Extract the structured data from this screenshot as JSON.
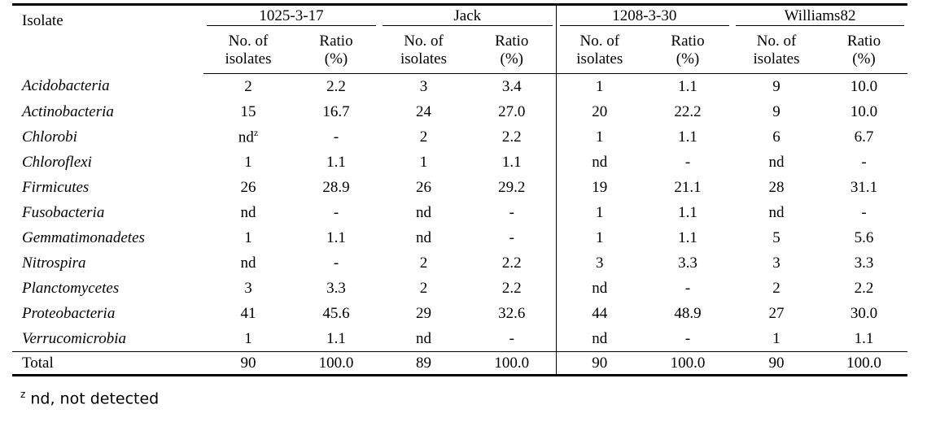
{
  "table": {
    "corner": "Isolate",
    "groups": [
      "1025-3-17",
      "Jack",
      "1208-3-30",
      "Williams82"
    ],
    "subheaders": [
      [
        "No. of",
        "isolates"
      ],
      [
        "Ratio",
        "(%)"
      ],
      [
        "No. of",
        "isolates"
      ],
      [
        "Ratio",
        "(%)"
      ],
      [
        "No. of",
        "isolates"
      ],
      [
        "Ratio",
        "(%)"
      ],
      [
        "No. of",
        "isolates"
      ],
      [
        "Ratio",
        "(%)"
      ]
    ],
    "rows": [
      {
        "name": "Acidobacteria",
        "cells": [
          "2",
          "2.2",
          "3",
          "3.4",
          "1",
          "1.1",
          "9",
          "10.0"
        ]
      },
      {
        "name": "Actinobacteria",
        "cells": [
          "15",
          "16.7",
          "24",
          "27.0",
          "20",
          "22.2",
          "9",
          "10.0"
        ]
      },
      {
        "name": "Chlorobi",
        "cells": [
          {
            "text": "nd",
            "sup": "z"
          },
          "-",
          "2",
          "2.2",
          "1",
          "1.1",
          "6",
          "6.7"
        ]
      },
      {
        "name": "Chloroflexi",
        "cells": [
          "1",
          "1.1",
          "1",
          "1.1",
          "nd",
          "-",
          "nd",
          "-"
        ]
      },
      {
        "name": "Firmicutes",
        "cells": [
          "26",
          "28.9",
          "26",
          "29.2",
          "19",
          "21.1",
          "28",
          "31.1"
        ]
      },
      {
        "name": "Fusobacteria",
        "cells": [
          "nd",
          "-",
          "nd",
          "-",
          "1",
          "1.1",
          "nd",
          "-"
        ]
      },
      {
        "name": "Gemmatimonadetes",
        "cells": [
          "1",
          "1.1",
          "nd",
          "-",
          "1",
          "1.1",
          "5",
          "5.6"
        ]
      },
      {
        "name": "Nitrospira",
        "cells": [
          "nd",
          "-",
          "2",
          "2.2",
          "3",
          "3.3",
          "3",
          "3.3"
        ]
      },
      {
        "name": "Planctomycetes",
        "cells": [
          "3",
          "3.3",
          "2",
          "2.2",
          "nd",
          "-",
          "2",
          "2.2"
        ]
      },
      {
        "name": "Proteobacteria",
        "cells": [
          "41",
          "45.6",
          "29",
          "32.6",
          "44",
          "48.9",
          "27",
          "30.0"
        ]
      },
      {
        "name": "Verrucomicrobia",
        "cells": [
          "1",
          "1.1",
          "nd",
          "-",
          "nd",
          "-",
          "1",
          "1.1"
        ]
      }
    ],
    "total": {
      "name": "Total",
      "cells": [
        "90",
        "100.0",
        "89",
        "100.0",
        "90",
        "100.0",
        "90",
        "100.0"
      ]
    }
  },
  "footnote": {
    "mark": "z",
    "text": "nd, not detected"
  }
}
